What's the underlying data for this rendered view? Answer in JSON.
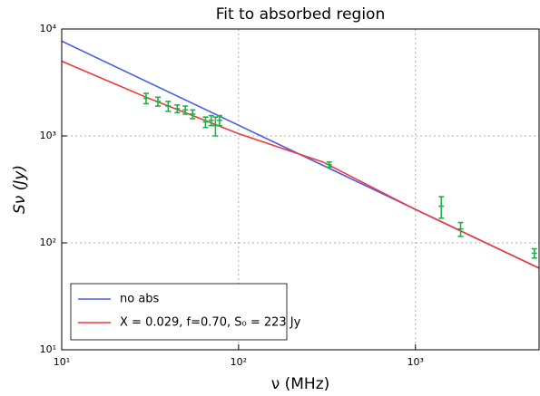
{
  "chart_data": {
    "type": "line",
    "title": "Fit to absorbed region",
    "x_label": "ν (MHz)",
    "y_label": "Sν (Jy)",
    "xscale": "log",
    "yscale": "log",
    "grid": true,
    "legend_loc": "lower left",
    "xlim": [
      10,
      5000
    ],
    "ylim": [
      10,
      10000
    ],
    "xticks": [
      {
        "value": 10,
        "label": "10¹"
      },
      {
        "value": 100,
        "label": "10²"
      },
      {
        "value": 1000,
        "label": "10³"
      }
    ],
    "yticks": [
      {
        "value": 10,
        "label": "10¹"
      },
      {
        "value": 100,
        "label": "10²"
      },
      {
        "value": 1000,
        "label": "10³"
      },
      {
        "value": 10000,
        "label": "10⁴"
      }
    ],
    "series": [
      {
        "name": "no abs",
        "color": "#4a5ee8",
        "x": [
          10,
          5000
        ],
        "values": [
          7700,
          58
        ]
      },
      {
        "name": "X = 0.029, f=0.70, S₀ = 223 Jy",
        "color": "#f0393c",
        "x": [
          10,
          30,
          100,
          300,
          1000,
          5000
        ],
        "values": [
          5000,
          2300,
          1050,
          570,
          205,
          58
        ]
      }
    ],
    "points": {
      "color": "#22b04a",
      "x": [
        30,
        35,
        40,
        45,
        50,
        55,
        65,
        70,
        74,
        78,
        325,
        1400,
        1800,
        4700
      ],
      "values": [
        2250,
        2100,
        1900,
        1800,
        1750,
        1600,
        1350,
        1400,
        1250,
        1400,
        540,
        220,
        135,
        80
      ],
      "errors": [
        250,
        200,
        200,
        150,
        150,
        150,
        150,
        150,
        250,
        150,
        30,
        50,
        20,
        8
      ]
    }
  }
}
